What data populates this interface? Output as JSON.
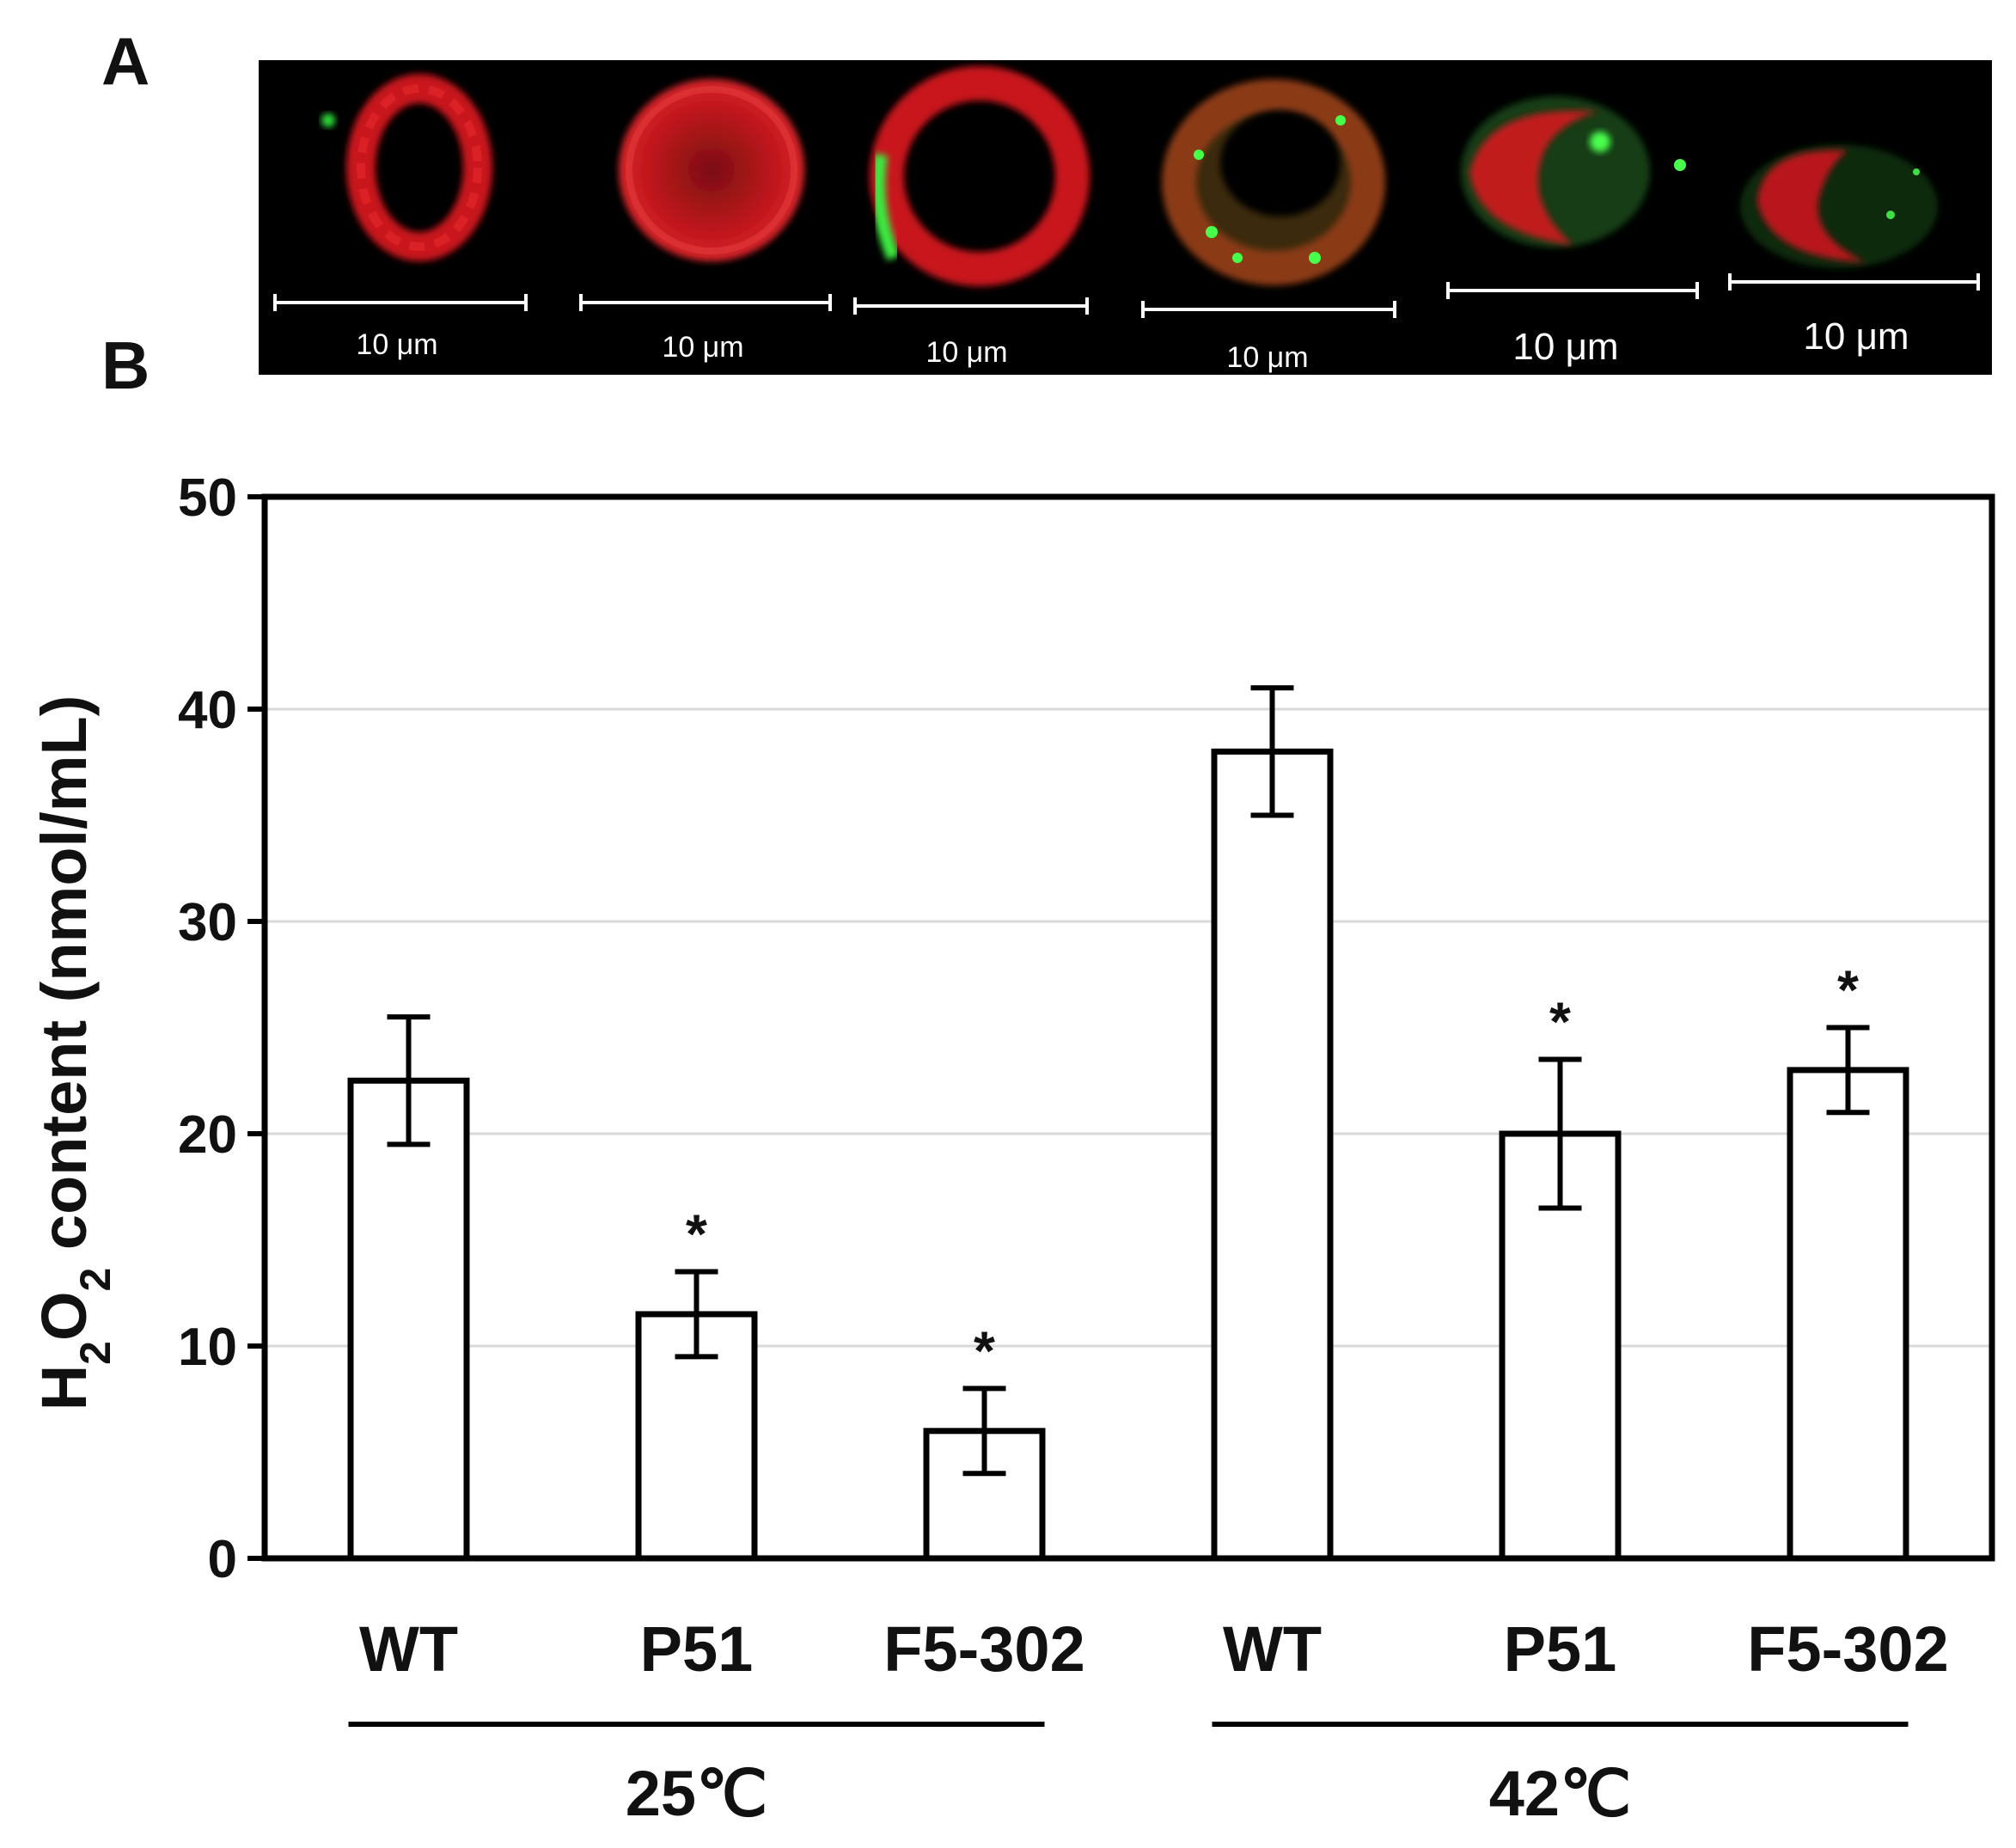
{
  "panel_labels": {
    "a": "A",
    "b": "B"
  },
  "micrographs": {
    "scale_bar_label": "10 μm",
    "cells": [
      {
        "name": "cell-1"
      },
      {
        "name": "cell-2"
      },
      {
        "name": "cell-3"
      },
      {
        "name": "cell-4"
      },
      {
        "name": "cell-5"
      },
      {
        "name": "cell-6"
      }
    ]
  },
  "chart_data": {
    "type": "bar",
    "categories": [
      "WT",
      "P51",
      "F5-302",
      "WT",
      "P51",
      "F5-302"
    ],
    "groups": [
      {
        "label": "25℃",
        "categories": [
          0,
          1,
          2
        ]
      },
      {
        "label": "42℃",
        "categories": [
          3,
          4,
          5
        ]
      }
    ],
    "series": [
      {
        "values": [
          22.5,
          11.5,
          6.0,
          38.0,
          20.0,
          23.0
        ],
        "errors": [
          3.0,
          2.0,
          2.0,
          3.0,
          3.5,
          2.0
        ],
        "significance": [
          "",
          "*",
          "*",
          "",
          "*",
          "*"
        ]
      }
    ],
    "ylabel_parts": {
      "pre": "H",
      "sub1": "2",
      "mid": "O",
      "sub2": "2",
      "post": " content (nmol/mL)"
    },
    "ylim": [
      0,
      50
    ],
    "yticks": [
      0,
      10,
      20,
      30,
      40,
      50
    ],
    "grid": true,
    "colors": {
      "bar_fill": "#ffffff",
      "bar_stroke": "#000000",
      "grid": "#d9d9d9"
    }
  }
}
